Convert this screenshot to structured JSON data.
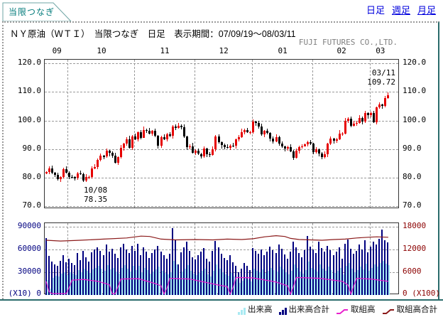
{
  "tab": {
    "label": "当限つなぎ"
  },
  "nav": {
    "items": [
      {
        "label": "日足",
        "active": true
      },
      {
        "label": "週足",
        "active": false
      },
      {
        "label": "月足",
        "active": false
      }
    ]
  },
  "header": {
    "title": "ＮＹ原油（ＷＴＩ）　当限つなぎ　日足　表示期間：07/09/19～08/03/11",
    "company": "FUJI FUTURES CO.,LTD."
  },
  "colors": {
    "accent_teal": "#2a6b6b",
    "tab_text": "#007a7a",
    "link_blue": "#0000dd",
    "grid": "#999999",
    "candle_up": "#e60000",
    "candle_down": "#000000",
    "vol_front": "#a8eaf2",
    "vol_total": "#000080",
    "oi_front": "#e822cc",
    "oi_total": "#8b1a1a",
    "axis_left_navy": "#000080",
    "axis_right_darkred": "#8b0000",
    "company_gray": "#808080"
  },
  "chart_data": [
    {
      "type": "candlestick",
      "title": "ＮＹ原油（ＷＴＩ） 当限つなぎ 日足",
      "period": "07/09/19～08/03/11",
      "x_month_labels": [
        "09",
        "10",
        "11",
        "12",
        "01",
        "02",
        "03"
      ],
      "month_boundary_days": [
        8,
        31,
        52,
        72,
        93,
        113
      ],
      "month_label_center_days": [
        4,
        19.5,
        41.5,
        62,
        82.5,
        103,
        116.5
      ],
      "ylim": [
        70,
        120
      ],
      "yticks": [
        120.0,
        110.0,
        100.0,
        90.0,
        80.0,
        70.0
      ],
      "ytick_labels": [
        "120.0",
        "110.0",
        "100.0",
        "90.0",
        "80.0",
        "70.0"
      ],
      "first_open": 81.4,
      "closes": [
        81.9,
        83.3,
        81.6,
        81.0,
        79.5,
        80.3,
        82.9,
        81.7,
        80.2,
        80.1,
        79.9,
        81.4,
        81.2,
        79.0,
        80.3,
        80.3,
        83.1,
        83.7,
        86.1,
        87.6,
        87.4,
        89.5,
        88.6,
        87.6,
        85.3,
        87.1,
        90.5,
        91.9,
        93.5,
        90.4,
        94.5,
        93.5,
        95.9,
        94.0,
        96.7,
        96.4,
        95.5,
        96.3,
        94.6,
        91.2,
        94.1,
        93.4,
        95.1,
        94.6,
        98.0,
        97.3,
        98.2,
        97.7,
        94.4,
        90.6,
        91.0,
        88.7,
        89.3,
        88.3,
        87.5,
        90.2,
        88.3,
        87.9,
        90.0,
        94.4,
        92.3,
        91.3,
        90.6,
        90.5,
        91.2,
        91.1,
        93.3,
        94.1,
        96.0,
        96.6,
        96.0,
        96.0,
        99.6,
        99.2,
        97.9,
        95.1,
        96.3,
        95.7,
        93.7,
        92.7,
        94.2,
        91.9,
        90.8,
        90.1,
        90.6,
        89.2,
        87.0,
        89.4,
        90.7,
        91.0,
        91.6,
        92.3,
        91.8,
        89.0,
        90.0,
        88.4,
        87.1,
        88.1,
        91.8,
        93.6,
        92.8,
        93.3,
        95.5,
        95.5,
        100.0,
        100.7,
        98.2,
        98.8,
        99.2,
        100.9,
        99.6,
        102.6,
        101.8,
        102.5,
        99.5,
        104.5,
        105.5,
        105.2,
        107.9,
        108.8
      ],
      "annotations": [
        {
          "line1": "10/08",
          "line2": "78.35",
          "day_index": 13,
          "kind": "low",
          "value": 78.35
        },
        {
          "line1": "03/11",
          "line2": "109.72",
          "day_index": 119,
          "kind": "high",
          "value": 109.72
        }
      ]
    },
    {
      "type": "bar+line",
      "left_axis": {
        "tick_labels": [
          "90000",
          "60000",
          "30000"
        ],
        "zero_label": "(X10) 0",
        "ticks": [
          90000,
          60000,
          30000
        ],
        "max": 90000,
        "color": "#000080"
      },
      "right_axis": {
        "tick_labels": [
          "18000",
          "12000",
          "6000"
        ],
        "zero_label": "0 (X100)",
        "ticks": [
          18000,
          12000,
          6000
        ],
        "max": 18000,
        "color": "#8b0000"
      },
      "series": [
        {
          "name": "出来高",
          "type": "bar",
          "axis": "left",
          "color": "#a8eaf2",
          "values": [
            20000,
            8000,
            22000,
            25000,
            24000,
            28000,
            30000,
            26000,
            30000,
            28000,
            26000,
            33000,
            30000,
            35000,
            32000,
            29000,
            34000,
            36000,
            38000,
            35000,
            32000,
            39000,
            34000,
            36000,
            31000,
            28000,
            36000,
            39000,
            35000,
            31000,
            38000,
            33000,
            38000,
            30000,
            36000,
            33000,
            28000,
            31000,
            34000,
            37000,
            32000,
            29000,
            27000,
            30000,
            45000,
            40000,
            22000,
            31000,
            35000,
            39000,
            32000,
            28000,
            26000,
            29000,
            32000,
            35000,
            27000,
            24000,
            32000,
            40000,
            35000,
            30000,
            27000,
            25000,
            29000,
            24000,
            21000,
            16000,
            19000,
            23000,
            21000,
            18000,
            35000,
            32000,
            30000,
            34000,
            29000,
            32000,
            36000,
            33000,
            31000,
            37000,
            34000,
            30000,
            27000,
            32000,
            40000,
            36000,
            31000,
            28000,
            33000,
            44000,
            36000,
            34000,
            31000,
            40000,
            35000,
            32000,
            37000,
            33000,
            29000,
            32000,
            36000,
            27000,
            38000,
            42000,
            35000,
            30000,
            33000,
            37000,
            34000,
            41000,
            32000,
            36000,
            40000,
            37000,
            42000,
            45000,
            41000,
            39000
          ]
        },
        {
          "name": "出来高合計",
          "type": "bar",
          "axis": "left",
          "color": "#000080",
          "values": [
            75000,
            51000,
            44000,
            40000,
            38000,
            45000,
            52000,
            43000,
            48000,
            42000,
            39000,
            55000,
            46000,
            58000,
            50000,
            44000,
            56000,
            60000,
            63000,
            58000,
            52000,
            66000,
            57000,
            61000,
            54000,
            49000,
            63000,
            67000,
            60000,
            55000,
            65000,
            58000,
            67000,
            52000,
            63000,
            57000,
            49000,
            55000,
            60000,
            65000,
            57000,
            52000,
            48000,
            54000,
            88000,
            72000,
            40000,
            56000,
            63000,
            70000,
            58000,
            50000,
            47000,
            52000,
            57000,
            62000,
            48000,
            44000,
            58000,
            71000,
            63000,
            54000,
            49000,
            46000,
            52000,
            43000,
            38000,
            30000,
            35000,
            42000,
            38000,
            33000,
            62000,
            58000,
            54000,
            60000,
            52000,
            57000,
            64000,
            59000,
            55000,
            66000,
            61000,
            53000,
            48000,
            57000,
            70000,
            63000,
            55000,
            50000,
            59000,
            78000,
            64000,
            60000,
            55000,
            70000,
            62000,
            57000,
            65000,
            59000,
            52000,
            57000,
            63000,
            48000,
            67000,
            73000,
            61000,
            54000,
            58000,
            66000,
            60000,
            72000,
            56000,
            64000,
            70000,
            66000,
            74000,
            86000,
            72000,
            69000
          ]
        },
        {
          "name": "取組高",
          "type": "line",
          "axis": "right",
          "color": "#e822cc",
          "points": [
            [
              0,
              3600
            ],
            [
              1,
              900
            ],
            [
              2,
              350
            ],
            [
              7,
              350
            ],
            [
              8,
              2000
            ],
            [
              9,
              3900
            ],
            [
              13,
              4100
            ],
            [
              18,
              3600
            ],
            [
              22,
              2700
            ],
            [
              23,
              300
            ],
            [
              24,
              300
            ],
            [
              25,
              2200
            ],
            [
              26,
              4200
            ],
            [
              32,
              4300
            ],
            [
              38,
              3000
            ],
            [
              40,
              2400
            ],
            [
              41,
              250
            ],
            [
              42,
              1800
            ],
            [
              43,
              4400
            ],
            [
              50,
              4200
            ],
            [
              60,
              2600
            ],
            [
              63,
              2200
            ],
            [
              64,
              250
            ],
            [
              65,
              2000
            ],
            [
              66,
              4600
            ],
            [
              72,
              4500
            ],
            [
              80,
              3400
            ],
            [
              84,
              2400
            ],
            [
              85,
              250
            ],
            [
              86,
              2200
            ],
            [
              87,
              4600
            ],
            [
              95,
              4400
            ],
            [
              103,
              3600
            ],
            [
              105,
              2600
            ],
            [
              106,
              250
            ],
            [
              107,
              2400
            ],
            [
              108,
              4400
            ],
            [
              113,
              4200
            ],
            [
              119,
              3600
            ]
          ]
        },
        {
          "name": "取組高合計",
          "type": "line",
          "axis": "right",
          "color": "#8b1a1a",
          "points": [
            [
              0,
              14400
            ],
            [
              5,
              14200
            ],
            [
              12,
              14400
            ],
            [
              20,
              14700
            ],
            [
              28,
              15000
            ],
            [
              33,
              15500
            ],
            [
              36,
              15400
            ],
            [
              40,
              14700
            ],
            [
              45,
              14500
            ],
            [
              52,
              14600
            ],
            [
              58,
              14500
            ],
            [
              63,
              14700
            ],
            [
              68,
              14600
            ],
            [
              72,
              14800
            ],
            [
              76,
              15300
            ],
            [
              80,
              15600
            ],
            [
              83,
              15400
            ],
            [
              85,
              14900
            ],
            [
              88,
              14600
            ],
            [
              92,
              14500
            ],
            [
              96,
              14400
            ],
            [
              100,
              14600
            ],
            [
              104,
              14700
            ],
            [
              108,
              15000
            ],
            [
              112,
              15200
            ],
            [
              115,
              15300
            ],
            [
              119,
              15200
            ]
          ]
        }
      ]
    }
  ],
  "legend": {
    "items": [
      {
        "label": "出来高",
        "swatch": "bars",
        "color": "#a8eaf2"
      },
      {
        "label": "出来高合計",
        "swatch": "bars",
        "color": "#000080"
      },
      {
        "label": "取組高",
        "swatch": "line",
        "color": "#e822cc"
      },
      {
        "label": "取組高合計",
        "swatch": "line",
        "color": "#8b1a1a"
      }
    ]
  }
}
